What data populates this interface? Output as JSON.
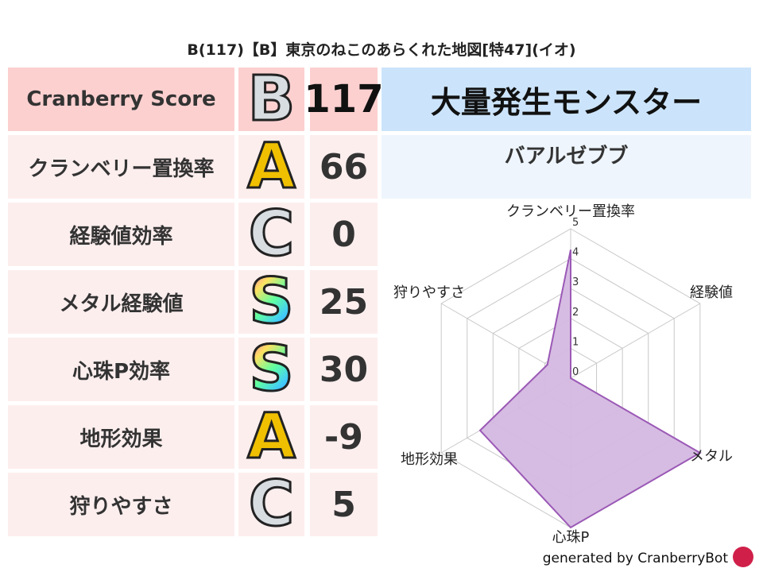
{
  "title": "B(117)【B】東京のねこのあらくれた地図[特47](イオ)",
  "score": {
    "label": "Cranberry Score",
    "rank": "B",
    "value": "117"
  },
  "rows": [
    {
      "label": "クランベリー置換率",
      "rank": "A",
      "value": "66"
    },
    {
      "label": "経験値効率",
      "rank": "C",
      "value": "0"
    },
    {
      "label": "メタル経験値",
      "rank": "S",
      "value": "25"
    },
    {
      "label": "心珠P効率",
      "rank": "S",
      "value": "30"
    },
    {
      "label": "地形効果",
      "rank": "A",
      "value": "-9"
    },
    {
      "label": "狩りやすさ",
      "rank": "C",
      "value": "5"
    }
  ],
  "monster": {
    "header": "大量発生モンスター",
    "name": "バアルゼブブ"
  },
  "chart_data": {
    "type": "radar",
    "categories": [
      "クランベリー置換率",
      "経験値",
      "メタル",
      "心珠P",
      "地形効果",
      "狩りやすさ"
    ],
    "values": [
      4.3,
      0,
      5,
      5,
      3.5,
      0.9
    ],
    "ticks": [
      "0",
      "1",
      "2",
      "3",
      "4",
      "5"
    ],
    "range": [
      0,
      5
    ],
    "colors": {
      "fill": "#d4b8e0",
      "stroke": "#9b59b6",
      "grid": "#c8c8c8"
    }
  },
  "footer": "generated by CranberryBot"
}
